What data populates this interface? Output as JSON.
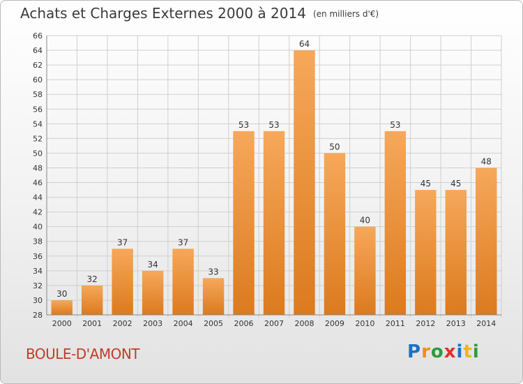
{
  "title": {
    "main": "Achats et Charges Externes 2000 à 2014",
    "unit": "(en milliers d'€)"
  },
  "commune": "BOULE-D'AMONT",
  "logo": {
    "text": "Proxiti",
    "letters": [
      "P",
      "r",
      "o",
      "x",
      "i",
      "t",
      "i"
    ],
    "colors": [
      "#1a72c4",
      "#f08c1c",
      "#2e9a3e",
      "#e0302a",
      "#1a72c4",
      "#f0b41c",
      "#2e9a3e"
    ]
  },
  "colors": {
    "bar_light": "#f6a85a",
    "bar_dark": "#dc7a1e",
    "grid": "#cfcfcf",
    "axis_text": "#333333",
    "commune": "#c03c28"
  },
  "chart_data": {
    "type": "bar",
    "categories": [
      "2000",
      "2001",
      "2002",
      "2003",
      "2004",
      "2005",
      "2006",
      "2007",
      "2008",
      "2009",
      "2010",
      "2011",
      "2012",
      "2013",
      "2014"
    ],
    "values": [
      30,
      32,
      37,
      34,
      37,
      33,
      53,
      53,
      64,
      50,
      40,
      53,
      45,
      45,
      48
    ],
    "data_labels": [
      "30",
      "32",
      "37",
      "34",
      "37",
      "33",
      "53",
      "53",
      "64",
      "50",
      "40",
      "53",
      "45",
      "45",
      "48"
    ],
    "ylim": [
      28,
      66
    ],
    "yticks": [
      28,
      30,
      32,
      34,
      36,
      38,
      40,
      42,
      44,
      46,
      48,
      50,
      52,
      54,
      56,
      58,
      60,
      62,
      64,
      66
    ],
    "title": "Achats et Charges Externes 2000 à 2014",
    "xlabel": "",
    "ylabel": "",
    "grid": true,
    "legend": "none"
  }
}
